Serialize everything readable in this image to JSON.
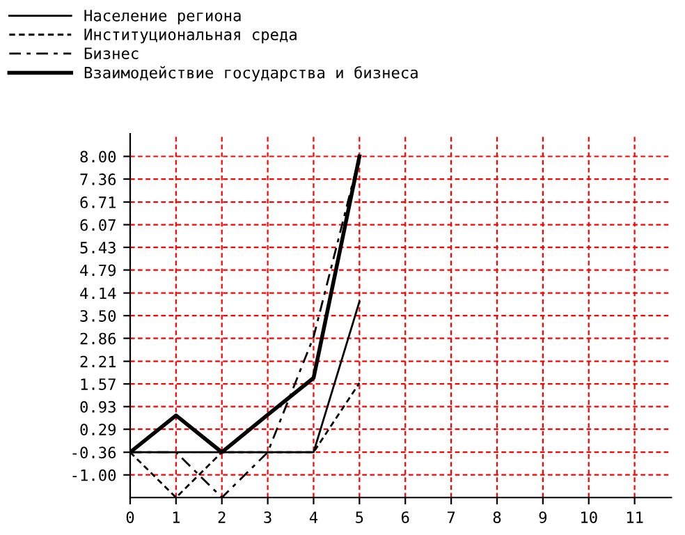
{
  "chart_data": {
    "type": "line",
    "x": [
      0,
      1,
      2,
      3,
      4,
      5
    ],
    "series": [
      {
        "name": "Население региона",
        "color": "#000000",
        "line_style": "solid",
        "values": [
          -0.36,
          -0.36,
          -0.36,
          -0.36,
          -0.36,
          3.9
        ]
      },
      {
        "name": "Институциональная среда",
        "color": "#000000",
        "line_style": "dotted",
        "values": [
          -0.36,
          -1.64,
          -0.36,
          -0.36,
          -0.36,
          1.6
        ]
      },
      {
        "name": "Бизнес",
        "color": "#000000",
        "line_style": "dashed",
        "values": [
          -0.36,
          -0.36,
          -1.64,
          -0.36,
          2.9,
          8.0
        ]
      },
      {
        "name": "Взаимодействие государства и бизнеса",
        "color": "#000000",
        "line_style": "solid",
        "values": [
          -0.36,
          0.68,
          -0.36,
          0.7,
          1.74,
          8.0
        ]
      }
    ],
    "xlim": [
      0,
      11.8
    ],
    "xticks": [
      0,
      1,
      2,
      3,
      4,
      5,
      6,
      7,
      8,
      9,
      10,
      11
    ],
    "ylim": [
      -1.64,
      8.64
    ],
    "yticks": [
      {
        "value": -1.0,
        "label": "-1.00"
      },
      {
        "value": -0.36,
        "label": "-0.36"
      },
      {
        "value": 0.29,
        "label": "0.29"
      },
      {
        "value": 0.93,
        "label": "0.93"
      },
      {
        "value": 1.57,
        "label": "1.57"
      },
      {
        "value": 2.21,
        "label": "2.21"
      },
      {
        "value": 2.86,
        "label": "2.86"
      },
      {
        "value": 3.5,
        "label": "3.50"
      },
      {
        "value": 4.14,
        "label": "4.14"
      },
      {
        "value": 4.79,
        "label": "4.79"
      },
      {
        "value": 5.43,
        "label": "5.43"
      },
      {
        "value": 6.07,
        "label": "6.07"
      },
      {
        "value": 6.71,
        "label": "6.71"
      },
      {
        "value": 7.36,
        "label": "7.36"
      },
      {
        "value": 8.0,
        "label": "8.00"
      }
    ],
    "grid": true,
    "legend": "top left"
  }
}
